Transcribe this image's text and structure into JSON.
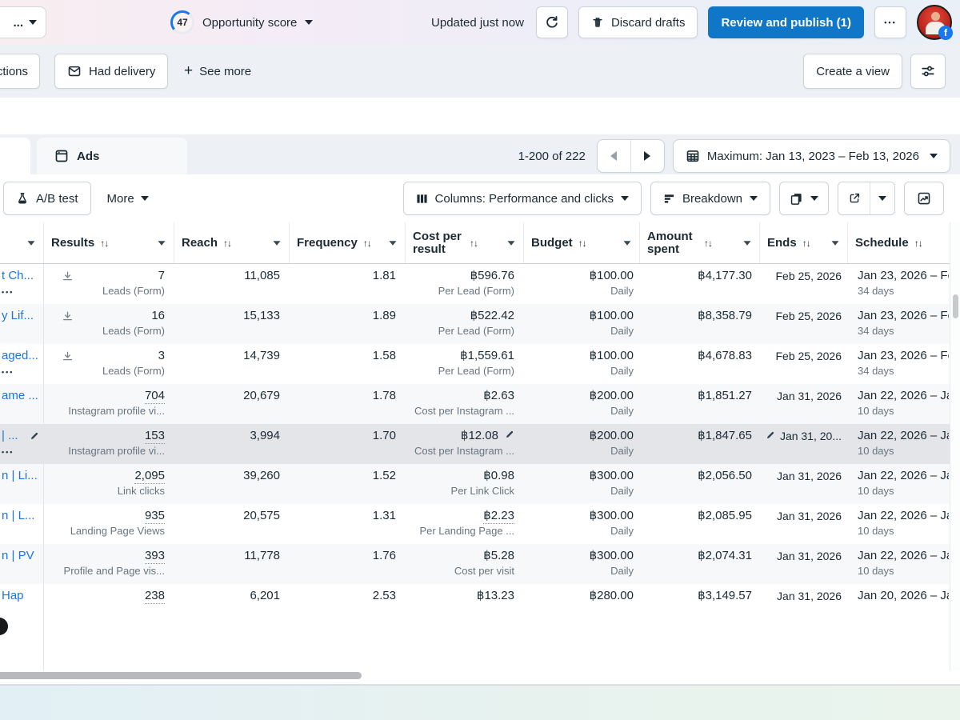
{
  "glyphs": {
    "dots": "•••",
    "sort": "↑↓",
    "plus": "+",
    "ellipsis": "•••",
    "fb_badge": "f"
  },
  "topbar": {
    "selector_label": "...",
    "score_value": "47",
    "score_label": "Opportunity score",
    "updated_text": "Updated just now",
    "discard_label": "Discard drafts",
    "publish_label": "Review and publish (1)",
    "publish_color": "#0f76c8"
  },
  "filterbar": {
    "truncated_filter": "ctions",
    "had_delivery": "Had delivery",
    "see_more": "See more",
    "create_view": "Create a view"
  },
  "tabrow": {
    "ads_tab": "Ads",
    "range": "1-200 of 222",
    "date_range": "Maximum: Jan 13, 2023 – Feb 13, 2026"
  },
  "toolbar": {
    "ab_test": "A/B test",
    "more": "More",
    "columns": "Columns: Performance and clicks",
    "breakdown": "Breakdown"
  },
  "table": {
    "headers": [
      {
        "key": "name",
        "label": "",
        "sort": false,
        "caret": true
      },
      {
        "key": "results",
        "label": "Results",
        "sort": true,
        "caret": true
      },
      {
        "key": "reach",
        "label": "Reach",
        "sort": true,
        "caret": true
      },
      {
        "key": "frequency",
        "label": "Frequency",
        "sort": true,
        "caret": true
      },
      {
        "key": "cost-per-result",
        "label": "Cost per result",
        "sort": true,
        "caret": true,
        "wrap": true
      },
      {
        "key": "budget",
        "label": "Budget",
        "sort": true,
        "caret": true
      },
      {
        "key": "amount-spent",
        "label": "Amount spent",
        "sort": true,
        "caret": true,
        "wrap": true
      },
      {
        "key": "ends",
        "label": "Ends",
        "sort": true,
        "caret": true
      },
      {
        "key": "schedule",
        "label": "Schedule",
        "sort": true,
        "caret": false
      }
    ],
    "rows": [
      {
        "name": "t Ch...",
        "menu": true,
        "download": true,
        "results": "7",
        "results_est": false,
        "results_label": "Leads (Form)",
        "reach": "11,085",
        "frequency": "1.81",
        "cost_per_result": "฿596.76",
        "cost_per_result_label": "Per Lead (Form)",
        "budget": "฿100.00",
        "budget_label": "Daily",
        "amount_spent": "฿4,177.30",
        "ends": "Feb 25, 2026",
        "schedule": "Jan 23, 2026 – Fe",
        "schedule_days": "34 days"
      },
      {
        "name": "y Lif...",
        "menu": false,
        "download": true,
        "results": "16",
        "results_est": false,
        "results_label": "Leads (Form)",
        "reach": "15,133",
        "frequency": "1.89",
        "cost_per_result": "฿522.42",
        "cost_per_result_label": "Per Lead (Form)",
        "budget": "฿100.00",
        "budget_label": "Daily",
        "amount_spent": "฿8,358.79",
        "ends": "Feb 25, 2026",
        "schedule": "Jan 23, 2026 – Fe",
        "schedule_days": "34 days"
      },
      {
        "name": "aged...",
        "menu": true,
        "download": true,
        "results": "3",
        "results_est": false,
        "results_label": "Leads (Form)",
        "reach": "14,739",
        "frequency": "1.58",
        "cost_per_result": "฿1,559.61",
        "cost_per_result_label": "Per Lead (Form)",
        "budget": "฿100.00",
        "budget_label": "Daily",
        "amount_spent": "฿4,678.83",
        "ends": "Feb 25, 2026",
        "schedule": "Jan 23, 2026 – Fe",
        "schedule_days": "34 days"
      },
      {
        "name": "ame ...",
        "menu": false,
        "download": false,
        "results": "704",
        "results_est": true,
        "results_label": "Instagram profile vi...",
        "reach": "20,679",
        "frequency": "1.78",
        "cost_per_result": "฿2.63",
        "cost_per_result_label": "Cost per Instagram ...",
        "budget": "฿200.00",
        "budget_label": "Daily",
        "amount_spent": "฿1,851.27",
        "ends": "Jan 31, 2026",
        "schedule": "Jan 22, 2026 – Ja",
        "schedule_days": "10 days"
      },
      {
        "name": "| ...",
        "name_pencil": true,
        "menu": true,
        "selected": true,
        "results": "153",
        "results_est": true,
        "results_label": "Instagram profile vi...",
        "reach": "3,994",
        "frequency": "1.70",
        "cost_per_result": "฿12.08",
        "cpr_pencil": true,
        "cost_per_result_label": "Cost per Instagram ...",
        "budget": "฿200.00",
        "budget_label": "Daily",
        "amount_spent": "฿1,847.65",
        "ends": "Jan 31, 20...",
        "ends_pencil": true,
        "schedule": "Jan 22, 2026 – Ja",
        "schedule_days": "10 days"
      },
      {
        "name": "n | Li...",
        "menu": false,
        "results": "2,095",
        "results_est": true,
        "results_label": "Link clicks",
        "reach": "39,260",
        "frequency": "1.52",
        "cost_per_result": "฿0.98",
        "cost_per_result_label": "Per Link Click",
        "budget": "฿300.00",
        "budget_label": "Daily",
        "amount_spent": "฿2,056.50",
        "ends": "Jan 31, 2026",
        "schedule": "Jan 22, 2026 – Ja",
        "schedule_days": "10 days"
      },
      {
        "name": "n | L...",
        "menu": false,
        "results": "935",
        "results_est": true,
        "results_label": "Landing Page Views",
        "reach": "20,575",
        "frequency": "1.31",
        "cost_per_result": "฿2.23",
        "cpr_est": true,
        "cost_per_result_label": "Per Landing Page ...",
        "budget": "฿300.00",
        "budget_label": "Daily",
        "amount_spent": "฿2,085.95",
        "ends": "Jan 31, 2026",
        "schedule": "Jan 22, 2026 – Ja",
        "schedule_days": "10 days"
      },
      {
        "name": "n | PV",
        "menu": false,
        "results": "393",
        "results_est": true,
        "results_label": "Profile and Page vis...",
        "reach": "11,778",
        "frequency": "1.76",
        "cost_per_result": "฿5.28",
        "cost_per_result_label": "Cost per visit",
        "budget": "฿300.00",
        "budget_label": "Daily",
        "amount_spent": "฿2,074.31",
        "ends": "Jan 31, 2026",
        "schedule": "Jan 22, 2026 – Ja",
        "schedule_days": "10 days"
      },
      {
        "name": "Hap",
        "menu": false,
        "results": "238",
        "results_est": true,
        "results_label": "",
        "reach": "6,201",
        "frequency": "2.53",
        "cost_per_result": "฿13.23",
        "cost_per_result_label": "",
        "budget": "฿280.00",
        "budget_label": "",
        "amount_spent": "฿3,149.57",
        "ends": "Jan 31, 2026",
        "schedule": "Jan 20, 2026 – Ja",
        "schedule_days": ""
      }
    ]
  }
}
